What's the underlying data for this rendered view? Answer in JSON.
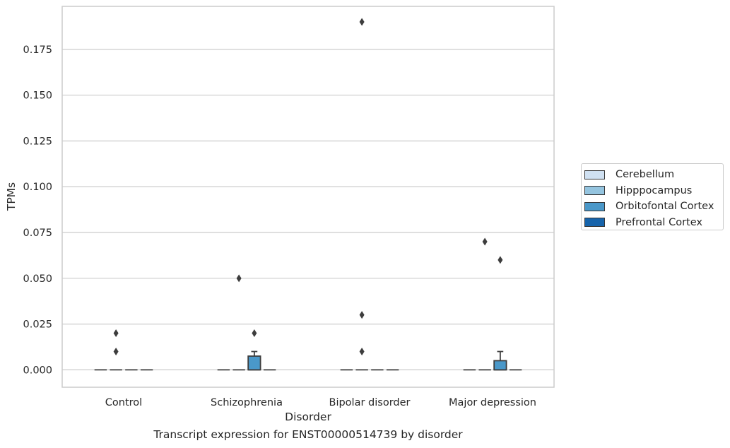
{
  "chart_data": {
    "type": "box",
    "title": "",
    "caption": "Transcript expression for ENST00000514739 by disorder",
    "xlabel": "Disorder",
    "ylabel": "TPMs",
    "ylim": [
      -0.0095,
      0.1985
    ],
    "yticks": [
      "0.000",
      "0.025",
      "0.050",
      "0.075",
      "0.100",
      "0.125",
      "0.150",
      "0.175"
    ],
    "ytick_values": [
      0,
      0.025,
      0.05,
      0.075,
      0.1,
      0.125,
      0.15,
      0.175
    ],
    "grid": true,
    "legend_position": "right",
    "categories": [
      "Control",
      "Schizophrenia",
      "Bipolar disorder",
      "Major depression"
    ],
    "series": [
      {
        "name": "Cerebellum",
        "color": "#d0e1f2",
        "boxes": [
          {
            "q1": 0,
            "median": 0,
            "q3": 0,
            "whisker_low": 0,
            "whisker_high": 0,
            "outliers": []
          },
          {
            "q1": 0,
            "median": 0,
            "q3": 0,
            "whisker_low": 0,
            "whisker_high": 0,
            "outliers": []
          },
          {
            "q1": 0,
            "median": 0,
            "q3": 0,
            "whisker_low": 0,
            "whisker_high": 0,
            "outliers": []
          },
          {
            "q1": 0,
            "median": 0,
            "q3": 0,
            "whisker_low": 0,
            "whisker_high": 0,
            "outliers": []
          }
        ]
      },
      {
        "name": "Hipppocampus",
        "color": "#94c4df",
        "boxes": [
          {
            "q1": 0,
            "median": 0,
            "q3": 0,
            "whisker_low": 0,
            "whisker_high": 0,
            "outliers": [
              0.02,
              0.01
            ]
          },
          {
            "q1": 0,
            "median": 0,
            "q3": 0,
            "whisker_low": 0,
            "whisker_high": 0,
            "outliers": [
              0.05
            ]
          },
          {
            "q1": 0,
            "median": 0,
            "q3": 0,
            "whisker_low": 0,
            "whisker_high": 0,
            "outliers": [
              0.19,
              0.03,
              0.01
            ]
          },
          {
            "q1": 0,
            "median": 0,
            "q3": 0,
            "whisker_low": 0,
            "whisker_high": 0,
            "outliers": [
              0.07
            ]
          }
        ]
      },
      {
        "name": "Orbitofontal Cortex",
        "color": "#4a98c9",
        "boxes": [
          {
            "q1": 0,
            "median": 0,
            "q3": 0,
            "whisker_low": 0,
            "whisker_high": 0,
            "outliers": []
          },
          {
            "q1": 0,
            "median": 0,
            "q3": 0.0075,
            "whisker_low": 0,
            "whisker_high": 0.01,
            "outliers": [
              0.02
            ]
          },
          {
            "q1": 0,
            "median": 0,
            "q3": 0,
            "whisker_low": 0,
            "whisker_high": 0,
            "outliers": []
          },
          {
            "q1": 0,
            "median": 0,
            "q3": 0.005,
            "whisker_low": 0,
            "whisker_high": 0.01,
            "outliers": [
              0.06
            ]
          }
        ]
      },
      {
        "name": "Prefrontal Cortex",
        "color": "#1764ab",
        "boxes": [
          {
            "q1": 0,
            "median": 0,
            "q3": 0,
            "whisker_low": 0,
            "whisker_high": 0,
            "outliers": []
          },
          {
            "q1": 0,
            "median": 0,
            "q3": 0,
            "whisker_low": 0,
            "whisker_high": 0,
            "outliers": []
          },
          {
            "q1": 0,
            "median": 0,
            "q3": 0,
            "whisker_low": 0,
            "whisker_high": 0,
            "outliers": []
          },
          {
            "q1": 0,
            "median": 0,
            "q3": 0,
            "whisker_low": 0,
            "whisker_high": 0,
            "outliers": []
          }
        ]
      }
    ]
  }
}
